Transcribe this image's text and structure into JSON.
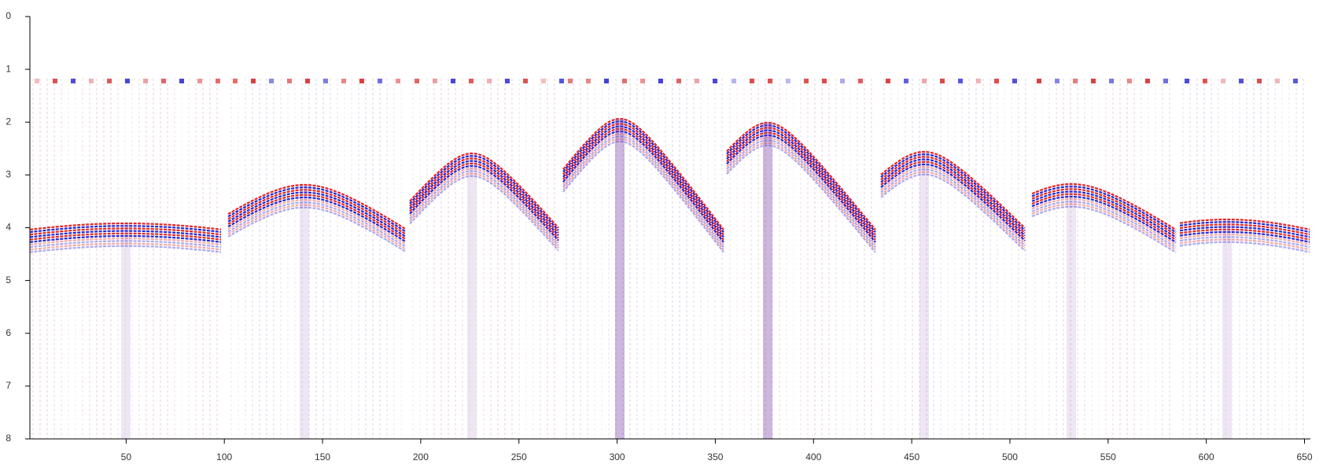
{
  "chart_data": {
    "type": "image",
    "xlim": [
      1,
      653
    ],
    "xticks": [
      50,
      100,
      150,
      200,
      250,
      300,
      350,
      400,
      450,
      500,
      550,
      600,
      650
    ],
    "ylim": [
      0,
      8
    ],
    "yticks": [
      0,
      1,
      2,
      3,
      4,
      5,
      6,
      7,
      8
    ],
    "y_inverted": true
  }
}
